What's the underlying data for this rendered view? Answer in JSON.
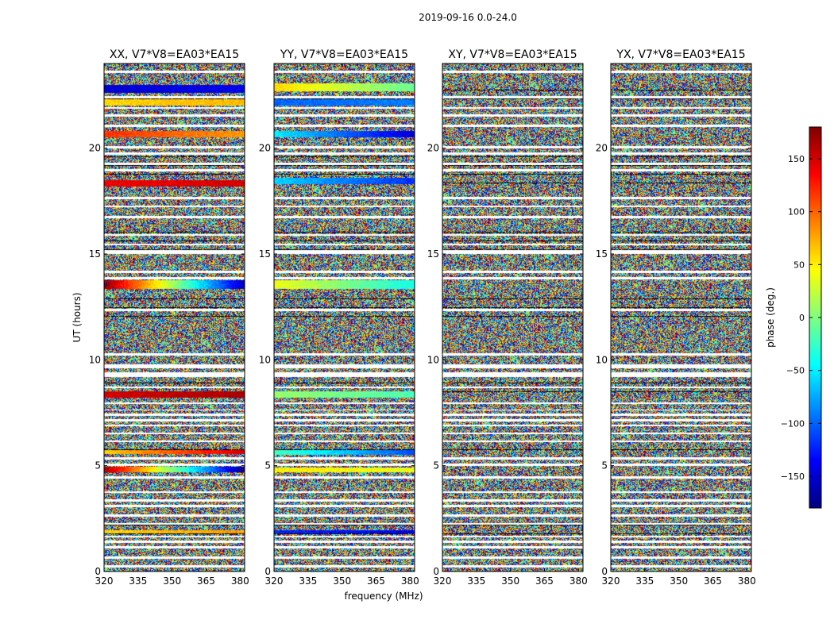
{
  "figure": {
    "suptitle": "2019-09-16 0.0-24.0"
  },
  "chart_data": {
    "type": "heatmap",
    "xlabel": "frequency (MHz)",
    "ylabel": "UT (hours)",
    "xlim": [
      320,
      382
    ],
    "ylim": [
      0,
      24
    ],
    "xticks": [
      "320",
      "335",
      "350",
      "365",
      "380"
    ],
    "yticks": [
      "0",
      "5",
      "10",
      "15",
      "20"
    ],
    "panels": [
      {
        "title": "XX, V7*V8=EA03*EA15",
        "coherent_bands": [
          {
            "ut": [
              22.6,
              23.0
            ],
            "phase_start": -150,
            "phase_end": -140
          },
          {
            "ut": [
              22.0,
              22.3
            ],
            "phase_start": 60,
            "phase_end": 70
          },
          {
            "ut": [
              20.5,
              20.8
            ],
            "phase_start": 120,
            "phase_end": 80
          },
          {
            "ut": [
              18.2,
              18.5
            ],
            "phase_start": 140,
            "phase_end": 150
          },
          {
            "ut": [
              13.35,
              13.75
            ],
            "phase_start": 175,
            "phase_end": -160
          },
          {
            "ut": [
              8.2,
              8.5
            ],
            "phase_start": 150,
            "phase_end": 165
          },
          {
            "ut": [
              5.55,
              5.75
            ],
            "phase_start": 60,
            "phase_end": 150
          },
          {
            "ut": [
              4.7,
              4.95
            ],
            "phase_start": 165,
            "phase_end": -175
          },
          {
            "ut": [
              1.8,
              1.95
            ],
            "phase_start": 60,
            "phase_end": 80
          }
        ]
      },
      {
        "title": "YY, V7*V8=EA03*EA15",
        "coherent_bands": [
          {
            "ut": [
              22.7,
              23.05
            ],
            "phase_start": 60,
            "phase_end": -10
          },
          {
            "ut": [
              22.0,
              22.3
            ],
            "phase_start": -100,
            "phase_end": -90
          },
          {
            "ut": [
              20.5,
              20.8
            ],
            "phase_start": -50,
            "phase_end": -150
          },
          {
            "ut": [
              18.3,
              18.6
            ],
            "phase_start": -60,
            "phase_end": -120
          },
          {
            "ut": [
              13.35,
              13.75
            ],
            "phase_start": 40,
            "phase_end": -40
          },
          {
            "ut": [
              8.2,
              8.5
            ],
            "phase_start": 10,
            "phase_end": -20
          },
          {
            "ut": [
              5.5,
              5.75
            ],
            "phase_start": -20,
            "phase_end": -110
          },
          {
            "ut": [
              4.7,
              4.9
            ],
            "phase_start": 50,
            "phase_end": 40
          },
          {
            "ut": [
              1.8,
              1.95
            ],
            "phase_start": -120,
            "phase_end": -140
          }
        ]
      },
      {
        "title": "XY, V7*V8=EA03*EA15",
        "coherent_bands": []
      },
      {
        "title": "YX, V7*V8=EA03*EA15",
        "coherent_bands": []
      }
    ],
    "flagged_rows_ut": [
      [
        23.55,
        23.65
      ],
      [
        22.35,
        22.45
      ],
      [
        21.85,
        21.95
      ],
      [
        21.5,
        21.6
      ],
      [
        21.0,
        21.1
      ],
      [
        20.0,
        20.1
      ],
      [
        19.7,
        19.8
      ],
      [
        19.2,
        19.3
      ],
      [
        18.9,
        19.0
      ],
      [
        17.6,
        17.7
      ],
      [
        17.2,
        17.3
      ],
      [
        16.7,
        16.8
      ],
      [
        15.85,
        15.95
      ],
      [
        15.4,
        15.5
      ],
      [
        15.0,
        15.2
      ],
      [
        14.1,
        14.2
      ],
      [
        13.8,
        13.9
      ],
      [
        12.3,
        12.4
      ],
      [
        10.2,
        10.3
      ],
      [
        9.6,
        9.8
      ],
      [
        9.2,
        9.4
      ],
      [
        8.65,
        8.75
      ],
      [
        7.9,
        8.0
      ],
      [
        7.6,
        7.65
      ],
      [
        7.35,
        7.45
      ],
      [
        7.1,
        7.2
      ],
      [
        6.85,
        6.95
      ],
      [
        6.5,
        6.55
      ],
      [
        6.1,
        6.2
      ],
      [
        5.3,
        5.4
      ],
      [
        5.0,
        5.1
      ],
      [
        4.4,
        4.5
      ],
      [
        3.7,
        3.8
      ],
      [
        3.3,
        3.4
      ],
      [
        3.05,
        3.15
      ],
      [
        2.6,
        2.7
      ],
      [
        2.2,
        2.3
      ],
      [
        1.6,
        1.7
      ],
      [
        1.35,
        1.45
      ],
      [
        1.1,
        1.2
      ],
      [
        0.6,
        0.7
      ],
      [
        0.2,
        0.3
      ]
    ],
    "colorbar": {
      "label": "phase (deg.)",
      "range": [
        -180,
        180
      ],
      "ticks": [
        "150",
        "100",
        "50",
        "0",
        "−50",
        "−100",
        "−150"
      ],
      "tick_values": [
        150,
        100,
        50,
        0,
        -50,
        -100,
        -150
      ],
      "colormap": "jet",
      "stops": [
        "#00007f",
        "#0000ff",
        "#007fff",
        "#00ffff",
        "#7fff7f",
        "#ffff00",
        "#ff7f00",
        "#ff0000",
        "#7f0000"
      ]
    }
  }
}
